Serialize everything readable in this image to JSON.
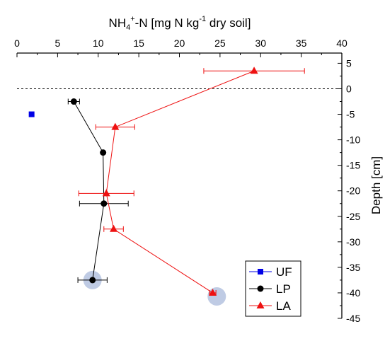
{
  "chart_data": {
    "type": "scatter",
    "title": "",
    "xlabel": "NH₄⁺-N [mg N kg⁻¹ dry soil]",
    "xlabel_parts": {
      "a": "NH",
      "b": "4",
      "c": "+",
      "d": "-N [mg N kg",
      "e": "-1",
      "f": " dry soil]"
    },
    "ylabel": "Depth [cm]",
    "xlim": [
      0,
      40
    ],
    "ylim": [
      -45,
      7
    ],
    "x_ticks": [
      0,
      5,
      10,
      15,
      20,
      25,
      30,
      35,
      40
    ],
    "x_tick_labels": [
      "0",
      "5",
      "10",
      "15",
      "20",
      "25",
      "30",
      "35",
      "40"
    ],
    "y_ticks": [
      5,
      0,
      -5,
      -10,
      -15,
      -20,
      -25,
      -30,
      -35,
      -40,
      -45
    ],
    "y_tick_labels": [
      "5",
      "0",
      "-5",
      "-10",
      "-15",
      "-20",
      "-25",
      "-30",
      "-35",
      "-40",
      "-45"
    ],
    "x_axis_position": "top",
    "y_axis_position": "right",
    "grid": false,
    "reference_line_y": 0,
    "legend_position": "bottom-right",
    "series": [
      {
        "name": "UF",
        "marker": "square",
        "color": "#0000e6",
        "points": [
          {
            "x": 1.8,
            "y": -5,
            "xerr": 0
          }
        ]
      },
      {
        "name": "LP",
        "marker": "circle",
        "color": "#000000",
        "points": [
          {
            "x": 7.0,
            "y": -2.5,
            "xerr": 0.7
          },
          {
            "x": 10.6,
            "y": -12.5,
            "xerr": 0
          },
          {
            "x": 10.7,
            "y": -22.5,
            "xerr": 3.0
          },
          {
            "x": 9.3,
            "y": -37.5,
            "xerr": 1.8
          }
        ]
      },
      {
        "name": "LA",
        "marker": "triangle",
        "color": "#ee1111",
        "points": [
          {
            "x": 29.2,
            "y": 3.5,
            "xerr": 6.2
          },
          {
            "x": 12.1,
            "y": -7.5,
            "xerr": 2.4
          },
          {
            "x": 11.0,
            "y": -20.5,
            "xerr": 3.4
          },
          {
            "x": 11.9,
            "y": -27.5,
            "xerr": 1.2
          },
          {
            "x": 24.1,
            "y": -40,
            "xerr": 0.4
          }
        ]
      }
    ],
    "highlight_points": [
      {
        "x": 9.3,
        "y": -37.5
      },
      {
        "x": 24.6,
        "y": -40.7
      }
    ],
    "highlight_color": "#a9b9db"
  }
}
